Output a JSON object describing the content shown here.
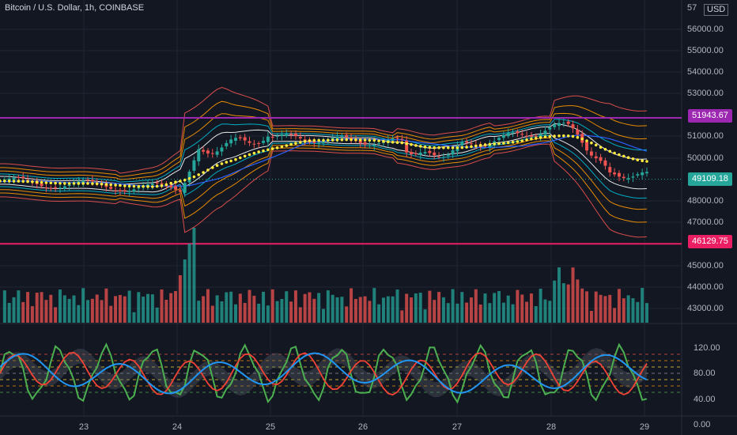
{
  "title": "Bitcoin / U.S. Dollar, 1h, COINBASE",
  "currency_label": "USD",
  "price_axis_top_label": "57",
  "price_ticks": [
    "56000.00",
    "55000.00",
    "54000.00",
    "53000.00",
    "51000.00",
    "50000.00",
    "48000.00",
    "47000.00",
    "45000.00",
    "44000.00",
    "43000.00"
  ],
  "price_badges": [
    {
      "label": "51943.67",
      "color": "#9c27b0"
    },
    {
      "label": "49109.18",
      "color": "#26a69a"
    },
    {
      "label": "46129.75",
      "color": "#e91e63"
    }
  ],
  "osc_ticks": [
    "120.00",
    "80.00",
    "40.00",
    "0.00"
  ],
  "date_ticks": [
    "23",
    "24",
    "25",
    "26",
    "27",
    "28",
    "29"
  ],
  "colors": {
    "background": "#131722",
    "bull": "#26a69a",
    "bear": "#ef5350",
    "resistance": "#9c27b0",
    "support": "#e91e63",
    "current": "#26a69a",
    "sar": "#ffeb3b",
    "osc_green": "#4caf50",
    "osc_red": "#f44336",
    "osc_blue": "#2196f3"
  },
  "chart_data": {
    "type": "candlestick",
    "price_axis_range": [
      42300,
      57000
    ],
    "resistance_level": 51943.67,
    "support_level": 46129.75,
    "current_price": 49109.18,
    "oscillator_range": [
      0,
      120
    ],
    "oscillator_levels": [
      80,
      70,
      60,
      50,
      40,
      30,
      20
    ],
    "x_labels": [
      "23",
      "24",
      "25",
      "26",
      "27",
      "28",
      "29"
    ]
  }
}
